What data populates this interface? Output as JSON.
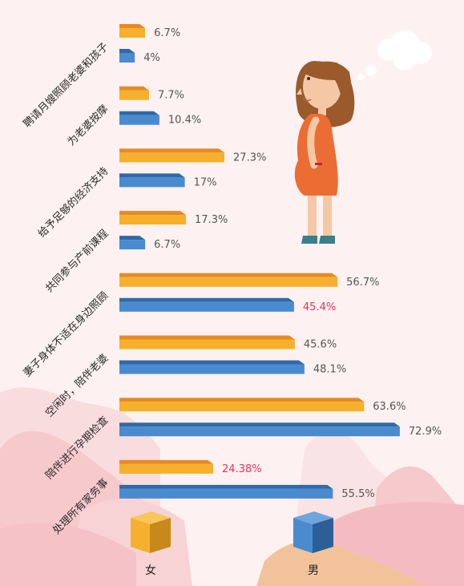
{
  "chart_data": {
    "type": "bar",
    "orientation": "horizontal",
    "categories": [
      "聘请月嫂照顾老婆和孩子",
      "为老婆按摩",
      "给予足够的经济支持",
      "共同参与产前课程",
      "妻子身体不适在身边照顾",
      "空闲时，陪伴老婆",
      "陪伴进行孕期检查",
      "处理所有家务事"
    ],
    "series": [
      {
        "name": "女",
        "color": "#f5b02e",
        "values": [
          6.7,
          7.7,
          27.3,
          17.3,
          56.7,
          45.6,
          63.6,
          24.38
        ],
        "labels": [
          "6.7%",
          "7.7%",
          "27.3%",
          "17.3%",
          "56.7%",
          "45.6%",
          "63.6%",
          "24.38%"
        ]
      },
      {
        "name": "男",
        "color": "#4a8bd0",
        "values": [
          4,
          10.4,
          17,
          6.7,
          45.4,
          48.1,
          72.9,
          55.5
        ],
        "labels": [
          "4%",
          "10.4%",
          "17%",
          "6.7%",
          "45.4%",
          "48.1%",
          "72.9%",
          "55.5%"
        ]
      }
    ],
    "highlighted_labels": [
      {
        "series": "男",
        "category_index": 4
      },
      {
        "series": "女",
        "category_index": 7
      }
    ],
    "highlight_color": "#e8335a",
    "label_color": "#555555",
    "xlim": [
      0,
      80
    ],
    "legend_position": "bottom",
    "grid": false
  },
  "legend": {
    "female": "女",
    "male": "男"
  }
}
